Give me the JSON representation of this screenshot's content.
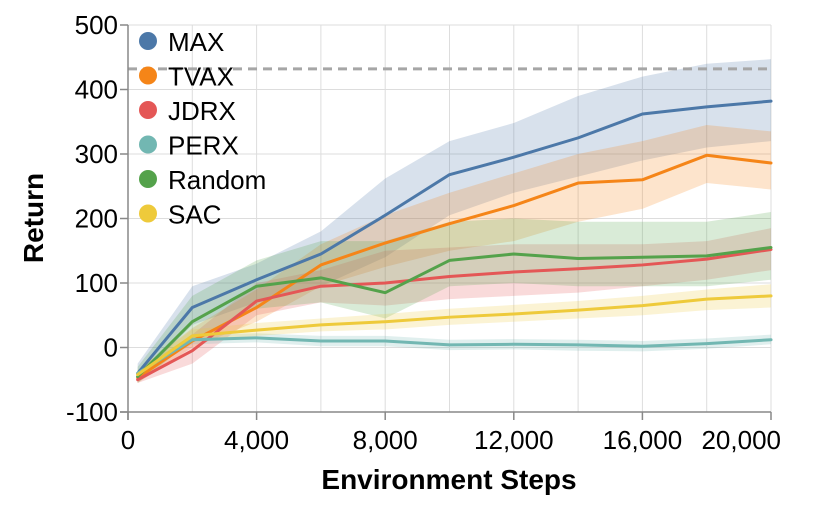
{
  "chart_data": {
    "type": "line",
    "xlabel": "Environment Steps",
    "ylabel": "Return",
    "xlim": [
      0,
      20000
    ],
    "ylim": [
      -100,
      500
    ],
    "x_ticks": [
      0,
      4000,
      8000,
      12000,
      16000,
      20000
    ],
    "x_tick_labels": [
      "0",
      "4,000",
      "8,000",
      "12,000",
      "16,000",
      "20,000"
    ],
    "y_ticks": [
      -100,
      0,
      100,
      200,
      300,
      400,
      500
    ],
    "y_tick_labels": [
      "-100",
      "0",
      "100",
      "200",
      "300",
      "400",
      "500"
    ],
    "grid": true,
    "legend_position": "top-left",
    "reference_line": {
      "y": 432,
      "style": "dashed",
      "color": "#a6a6a6"
    },
    "x": [
      300,
      2000,
      4000,
      6000,
      8000,
      10000,
      12000,
      14000,
      16000,
      18000,
      20000
    ],
    "series": [
      {
        "name": "MAX",
        "color": "#4c78a8",
        "values": [
          -40,
          62,
          105,
          145,
          205,
          268,
          295,
          325,
          362,
          373,
          382
        ],
        "lower": [
          -50,
          35,
          70,
          95,
          140,
          205,
          240,
          265,
          290,
          310,
          320
        ],
        "upper": [
          -25,
          95,
          130,
          180,
          262,
          320,
          348,
          390,
          420,
          440,
          447
        ]
      },
      {
        "name": "TVAX",
        "color": "#f58518",
        "values": [
          -47,
          10,
          62,
          128,
          162,
          192,
          220,
          255,
          260,
          298,
          286
        ],
        "lower": [
          -55,
          0,
          40,
          95,
          125,
          150,
          165,
          195,
          215,
          255,
          245
        ],
        "upper": [
          -35,
          30,
          90,
          160,
          205,
          240,
          270,
          300,
          320,
          345,
          335
        ]
      },
      {
        "name": "JDRX",
        "color": "#e45756",
        "values": [
          -50,
          -5,
          72,
          95,
          100,
          110,
          117,
          122,
          128,
          137,
          152
        ],
        "lower": [
          -55,
          -25,
          50,
          70,
          65,
          75,
          80,
          85,
          95,
          105,
          120
        ],
        "upper": [
          -40,
          20,
          100,
          120,
          150,
          155,
          160,
          160,
          160,
          165,
          185
        ]
      },
      {
        "name": "PERX",
        "color": "#72b7b2",
        "values": [
          -40,
          12,
          15,
          10,
          10,
          4,
          5,
          4,
          2,
          6,
          12
        ],
        "lower": [
          -45,
          5,
          8,
          2,
          2,
          -4,
          -3,
          -5,
          -6,
          -2,
          5
        ],
        "upper": [
          -35,
          20,
          22,
          18,
          18,
          12,
          13,
          12,
          10,
          14,
          20
        ]
      },
      {
        "name": "Random",
        "color": "#54a24b",
        "values": [
          -45,
          40,
          95,
          108,
          85,
          135,
          145,
          138,
          140,
          142,
          155
        ],
        "lower": [
          -55,
          10,
          60,
          70,
          45,
          95,
          100,
          95,
          95,
          95,
          105
        ],
        "upper": [
          -30,
          80,
          135,
          165,
          165,
          195,
          200,
          195,
          195,
          195,
          210
        ]
      },
      {
        "name": "SAC",
        "color": "#eeca3b",
        "values": [
          -42,
          18,
          27,
          35,
          40,
          47,
          52,
          58,
          65,
          75,
          80
        ],
        "lower": [
          -48,
          10,
          18,
          25,
          28,
          35,
          40,
          45,
          50,
          58,
          62
        ],
        "upper": [
          -35,
          28,
          38,
          45,
          52,
          60,
          66,
          72,
          80,
          90,
          98
        ]
      }
    ]
  }
}
